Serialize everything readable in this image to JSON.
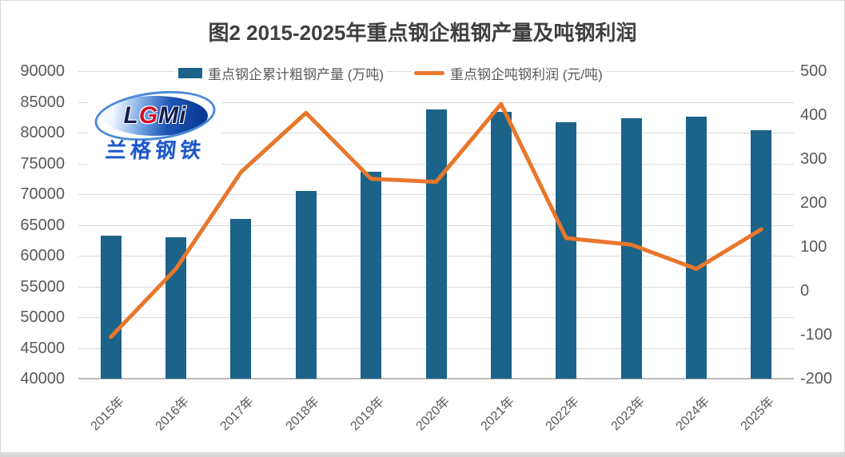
{
  "title": "图2 2015-2025年重点钢企粗钢产量及吨钢利润",
  "logo": {
    "letters": [
      {
        "ch": "L",
        "color": "#131f4e"
      },
      {
        "ch": "G",
        "color": "#cf1126"
      },
      {
        "ch": "M",
        "color": "#131f4e"
      },
      {
        "ch": "i",
        "color": "#131f4e"
      }
    ],
    "name": "兰格钢铁",
    "name_color": "#1e56c8"
  },
  "chart_data": {
    "type": "combo",
    "title": "图2 2015-2025年重点钢企粗钢产量及吨钢利润",
    "categories": [
      "2015年",
      "2016年",
      "2017年",
      "2018年",
      "2019年",
      "2020年",
      "2021年",
      "2022年",
      "2023年",
      "2024年",
      "2025年"
    ],
    "series": [
      {
        "name": "重点钢企累计粗钢产量 (万吨)",
        "type": "bar",
        "y_axis": "left",
        "color": "#1B6388",
        "values": [
          63300,
          63000,
          66000,
          70500,
          73600,
          83800,
          83400,
          81700,
          82400,
          82600,
          80400
        ]
      },
      {
        "name": "重点钢企吨钢利润 (元/吨)",
        "type": "line",
        "y_axis": "right",
        "color": "#E8772C",
        "values": [
          -105,
          50,
          270,
          405,
          255,
          248,
          425,
          120,
          105,
          50,
          140
        ]
      }
    ],
    "left_axis": {
      "min": 40000,
      "max": 90000,
      "step": 5000,
      "ticks": [
        90000,
        85000,
        80000,
        75000,
        70000,
        65000,
        60000,
        55000,
        50000,
        45000,
        40000
      ]
    },
    "right_axis": {
      "min": -200,
      "max": 500,
      "step": 100,
      "ticks": [
        500,
        400,
        300,
        200,
        100,
        0,
        -100,
        -200
      ]
    },
    "grid": true,
    "legend_position": "top",
    "grid_color": "#D9D9D9",
    "tick_color": "#595959"
  }
}
